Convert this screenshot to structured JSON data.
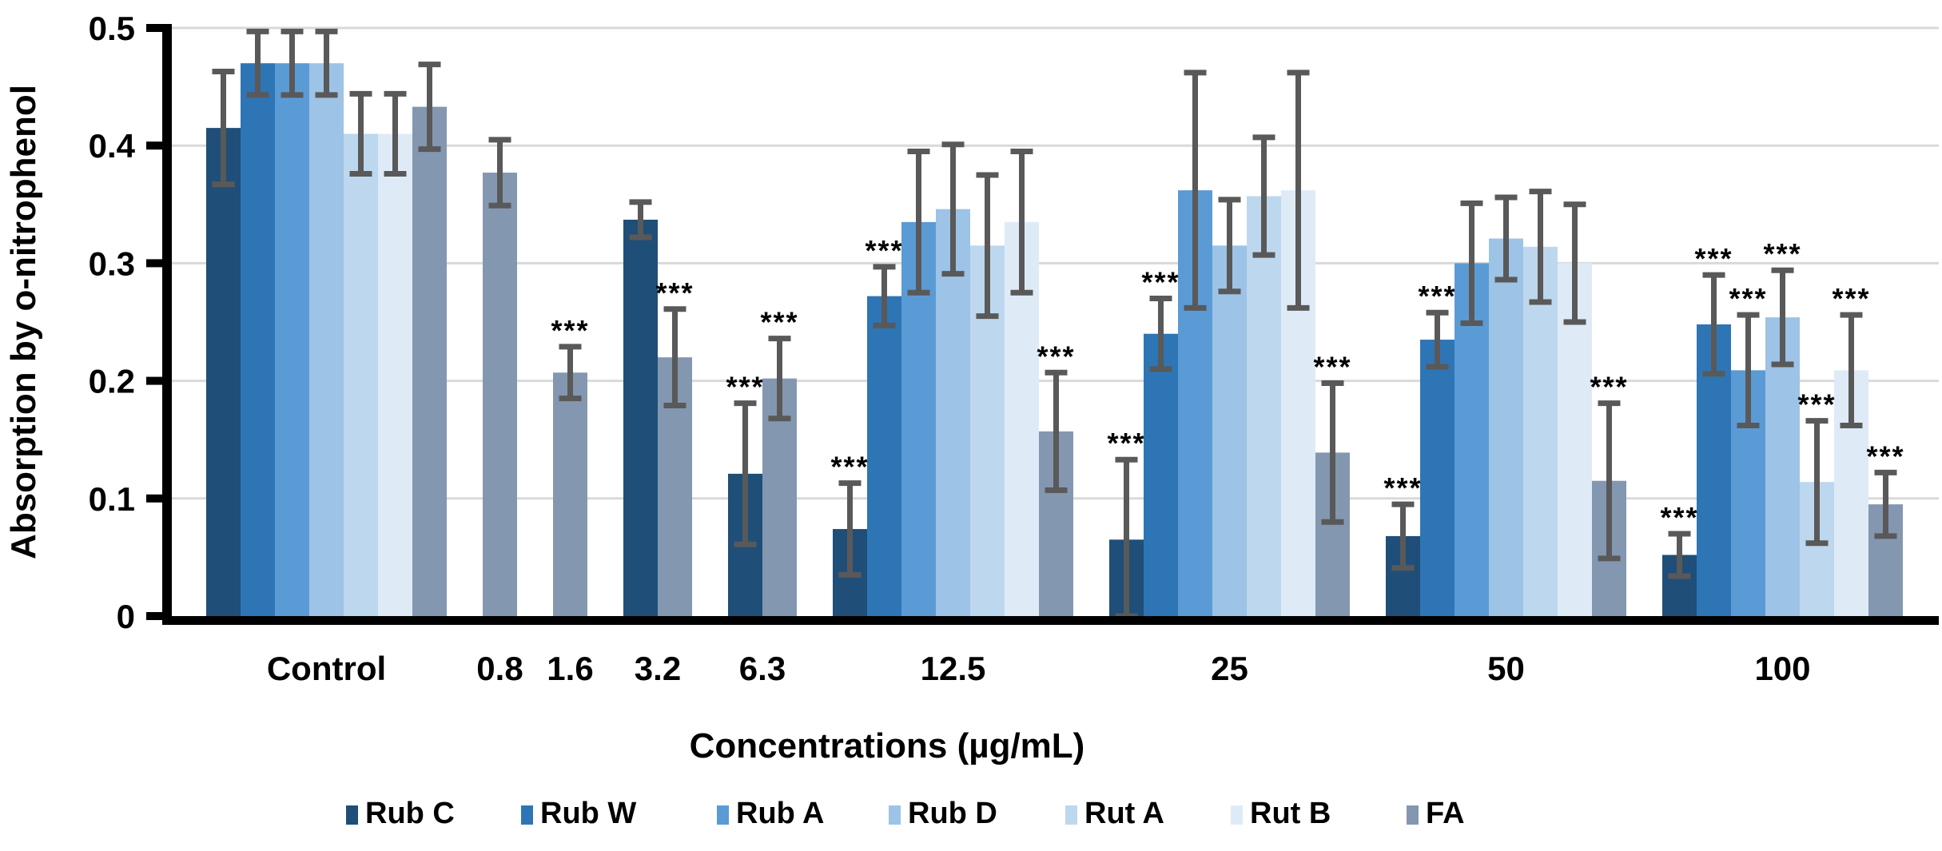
{
  "chart_data": {
    "type": "bar",
    "title": "",
    "xlabel": "Concentrations (µg/mL)",
    "ylabel": "Absorption by o-nitrophenol",
    "ylim": [
      0,
      0.5
    ],
    "ytick_labels": [
      "0",
      "0.1",
      "0.2",
      "0.3",
      "0.4",
      "0.5"
    ],
    "grid": true,
    "legend_position": "bottom",
    "significance_marker": "***",
    "error_bar_color": "#595959",
    "gridline_color": "#D9D9D9",
    "axis_color": "#000000",
    "series": [
      {
        "name": "Rub C",
        "color": "#1F4E79"
      },
      {
        "name": "Rub W",
        "color": "#2E75B6"
      },
      {
        "name": "Rub A",
        "color": "#5B9BD5"
      },
      {
        "name": "Rub D",
        "color": "#9DC3E6"
      },
      {
        "name": "Rut A",
        "color": "#BDD7EE"
      },
      {
        "name": "Rut B",
        "color": "#DEEBF7"
      },
      {
        "name": "FA",
        "color": "#8497B0"
      }
    ],
    "groups": [
      {
        "label": "Control",
        "bars": [
          {
            "series": "Rub C",
            "value": 0.415,
            "error": 0.048,
            "sig": false
          },
          {
            "series": "Rub W",
            "value": 0.47,
            "error": 0.027,
            "sig": false
          },
          {
            "series": "Rub A",
            "value": 0.47,
            "error": 0.027,
            "sig": false
          },
          {
            "series": "Rub D",
            "value": 0.47,
            "error": 0.027,
            "sig": false
          },
          {
            "series": "Rut A",
            "value": 0.41,
            "error": 0.034,
            "sig": false
          },
          {
            "series": "Rut B",
            "value": 0.41,
            "error": 0.034,
            "sig": false
          },
          {
            "series": "FA",
            "value": 0.433,
            "error": 0.036,
            "sig": false
          }
        ]
      },
      {
        "label": "0.8",
        "bars": [
          {
            "series": "FA",
            "value": 0.377,
            "error": 0.028,
            "sig": false
          }
        ]
      },
      {
        "label": "1.6",
        "bars": [
          {
            "series": "FA",
            "value": 0.207,
            "error": 0.022,
            "sig": true
          }
        ]
      },
      {
        "label": "3.2",
        "bars": [
          {
            "series": "Rub C",
            "value": 0.337,
            "error": 0.015,
            "sig": false
          },
          {
            "series": "FA",
            "value": 0.22,
            "error": 0.041,
            "sig": true
          }
        ]
      },
      {
        "label": "6.3",
        "bars": [
          {
            "series": "Rub C",
            "value": 0.121,
            "error": 0.06,
            "sig": true
          },
          {
            "series": "FA",
            "value": 0.202,
            "error": 0.034,
            "sig": true
          }
        ]
      },
      {
        "label": "12.5",
        "bars": [
          {
            "series": "Rub C",
            "value": 0.074,
            "error": 0.039,
            "sig": true
          },
          {
            "series": "Rub W",
            "value": 0.272,
            "error": 0.025,
            "sig": true
          },
          {
            "series": "Rub A",
            "value": 0.335,
            "error": 0.06,
            "sig": false
          },
          {
            "series": "Rub D",
            "value": 0.346,
            "error": 0.055,
            "sig": false
          },
          {
            "series": "Rut A",
            "value": 0.315,
            "error": 0.06,
            "sig": false
          },
          {
            "series": "Rut B",
            "value": 0.335,
            "error": 0.06,
            "sig": false
          },
          {
            "series": "FA",
            "value": 0.157,
            "error": 0.05,
            "sig": true
          }
        ]
      },
      {
        "label": "25",
        "bars": [
          {
            "series": "Rub C",
            "value": 0.065,
            "error": 0.068,
            "sig": true
          },
          {
            "series": "Rub W",
            "value": 0.24,
            "error": 0.03,
            "sig": true
          },
          {
            "series": "Rub A",
            "value": 0.362,
            "error": 0.1,
            "sig": false
          },
          {
            "series": "Rub D",
            "value": 0.315,
            "error": 0.039,
            "sig": false
          },
          {
            "series": "Rut A",
            "value": 0.357,
            "error": 0.05,
            "sig": false
          },
          {
            "series": "Rut B",
            "value": 0.362,
            "error": 0.1,
            "sig": false
          },
          {
            "series": "FA",
            "value": 0.139,
            "error": 0.059,
            "sig": true
          }
        ]
      },
      {
        "label": "50",
        "bars": [
          {
            "series": "Rub C",
            "value": 0.068,
            "error": 0.027,
            "sig": true
          },
          {
            "series": "Rub W",
            "value": 0.235,
            "error": 0.023,
            "sig": true
          },
          {
            "series": "Rub A",
            "value": 0.3,
            "error": 0.051,
            "sig": false
          },
          {
            "series": "Rub D",
            "value": 0.321,
            "error": 0.035,
            "sig": false
          },
          {
            "series": "Rut A",
            "value": 0.314,
            "error": 0.047,
            "sig": false
          },
          {
            "series": "Rut B",
            "value": 0.3,
            "error": 0.05,
            "sig": false
          },
          {
            "series": "FA",
            "value": 0.115,
            "error": 0.066,
            "sig": true
          }
        ]
      },
      {
        "label": "100",
        "bars": [
          {
            "series": "Rub C",
            "value": 0.052,
            "error": 0.018,
            "sig": true
          },
          {
            "series": "Rub W",
            "value": 0.248,
            "error": 0.042,
            "sig": true
          },
          {
            "series": "Rub A",
            "value": 0.209,
            "error": 0.047,
            "sig": true
          },
          {
            "series": "Rub D",
            "value": 0.254,
            "error": 0.04,
            "sig": true
          },
          {
            "series": "Rut A",
            "value": 0.114,
            "error": 0.052,
            "sig": true
          },
          {
            "series": "Rut B",
            "value": 0.209,
            "error": 0.047,
            "sig": true
          },
          {
            "series": "FA",
            "value": 0.095,
            "error": 0.027,
            "sig": true
          }
        ]
      }
    ]
  }
}
